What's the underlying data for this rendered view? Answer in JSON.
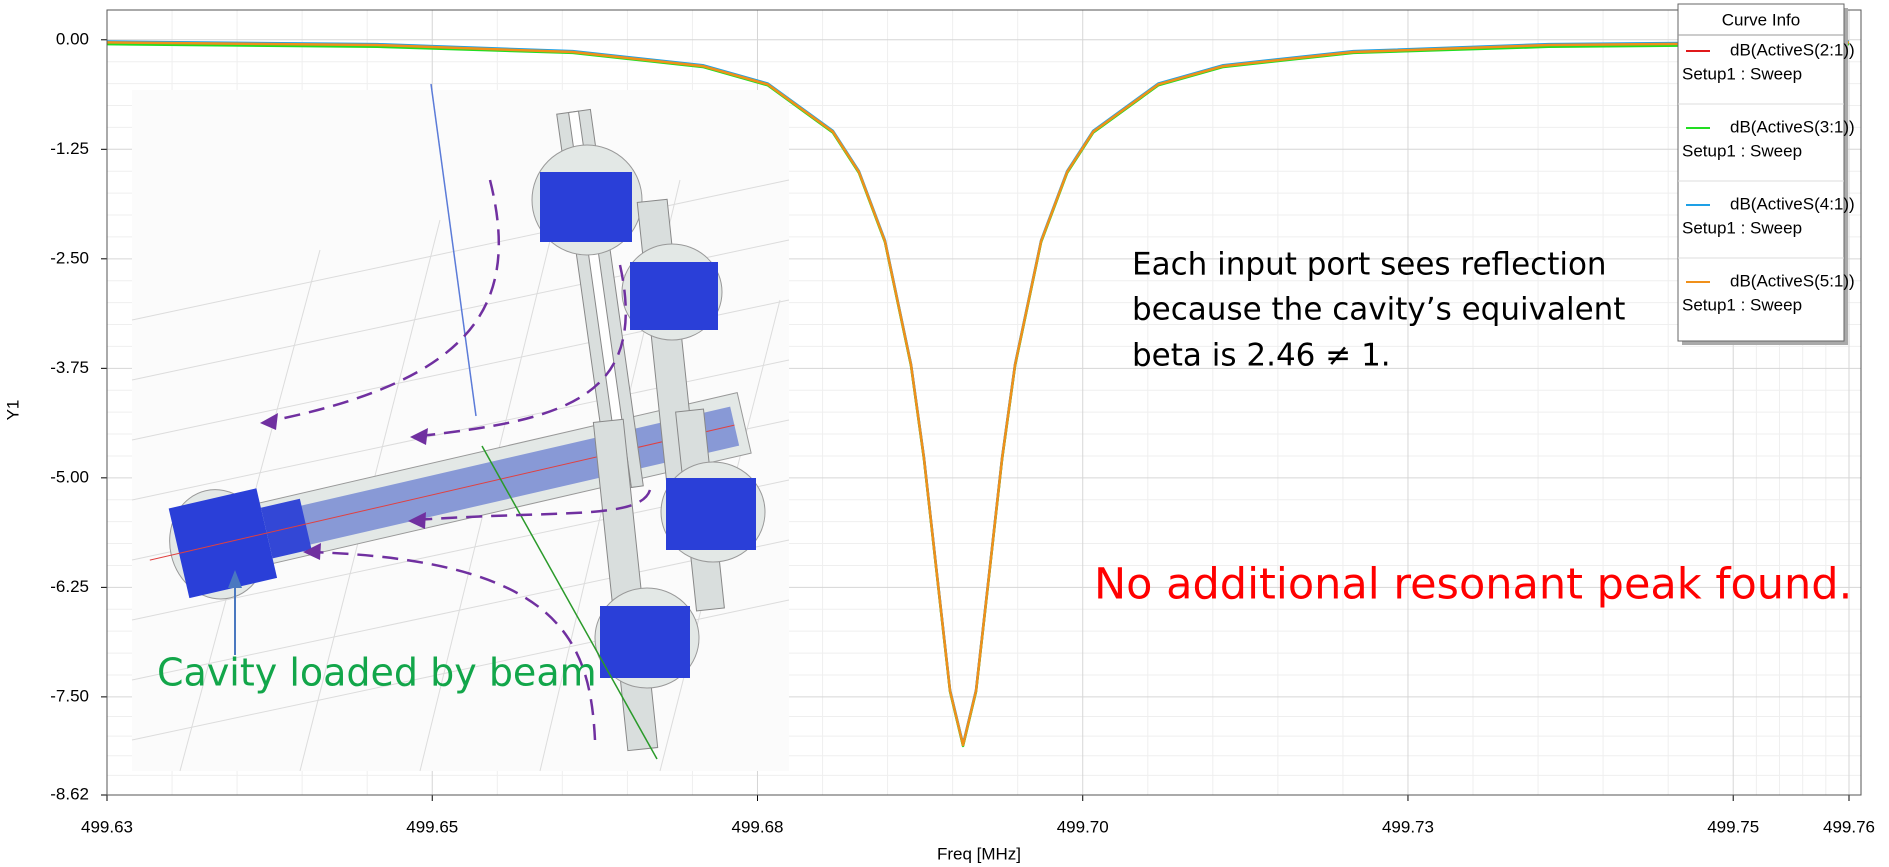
{
  "chart_data": {
    "type": "line",
    "x_label": "Freq [MHz]",
    "y_label": "Y1",
    "legend_title": "Curve Info",
    "x": [
      499.63,
      499.6508,
      499.6658,
      499.6758,
      499.6808,
      499.6858,
      499.6878,
      499.6898,
      499.6918,
      499.6928,
      499.6938,
      499.6948,
      499.6958,
      499.6968,
      499.6978,
      499.6988,
      499.6998,
      499.7018,
      499.7038,
      499.7058,
      499.7108,
      499.7158,
      499.7258,
      499.7408,
      499.7639
    ],
    "series": [
      {
        "name": "dB(ActiveS(2:1))",
        "setup": "Setup1 : Sweep",
        "color": "#e0191b",
        "values": [
          -0.03,
          -0.06,
          -0.14,
          -0.3,
          -0.51,
          -1.05,
          -1.51,
          -2.3,
          -3.71,
          -4.78,
          -6.11,
          -7.43,
          -8.05,
          -7.43,
          -6.11,
          -4.78,
          -3.71,
          -2.3,
          -1.51,
          -1.05,
          -0.51,
          -0.3,
          -0.14,
          -0.06,
          -0.03
        ]
      },
      {
        "name": "dB(ActiveS(3:1))",
        "setup": "Setup1 : Sweep",
        "color": "#22dd22",
        "values": [
          -0.05,
          -0.08,
          -0.15,
          -0.31,
          -0.52,
          -1.06,
          -1.52,
          -2.31,
          -3.72,
          -4.79,
          -6.12,
          -7.44,
          -8.06,
          -7.44,
          -6.12,
          -4.79,
          -3.72,
          -2.31,
          -1.52,
          -1.06,
          -0.52,
          -0.31,
          -0.15,
          -0.08,
          -0.05
        ]
      },
      {
        "name": "dB(ActiveS(4:1))",
        "setup": "Setup1 : Sweep",
        "color": "#1ea0e6",
        "values": [
          -0.02,
          -0.05,
          -0.13,
          -0.29,
          -0.5,
          -1.04,
          -1.5,
          -2.29,
          -3.7,
          -4.77,
          -6.1,
          -7.42,
          -8.04,
          -7.42,
          -6.1,
          -4.77,
          -3.7,
          -2.29,
          -1.5,
          -1.04,
          -0.5,
          -0.29,
          -0.13,
          -0.05,
          -0.02
        ]
      },
      {
        "name": "dB(ActiveS(5:1))",
        "setup": "Setup1 : Sweep",
        "color": "#f0901a",
        "values": [
          -0.03,
          -0.06,
          -0.14,
          -0.3,
          -0.51,
          -1.05,
          -1.51,
          -2.3,
          -3.71,
          -4.78,
          -6.11,
          -7.43,
          -8.05,
          -7.43,
          -6.11,
          -4.78,
          -3.71,
          -2.3,
          -1.51,
          -1.05,
          -0.51,
          -0.3,
          -0.14,
          -0.06,
          -0.03
        ]
      }
    ],
    "xlim": [
      499.63,
      499.7639
    ],
    "xticks": [
      499.63,
      {
        "value": 499.655,
        "label": "499.65"
      },
      499.68,
      {
        "value": 499.705,
        "label": "499.70"
      },
      499.73,
      {
        "value": 499.755,
        "label": "499.75"
      },
      {
        "value": 499.7639,
        "label": "499.76"
      }
    ],
    "ylim": [
      -8.62,
      0.34
    ],
    "yticks": [
      {
        "value": 0,
        "label": "0.00"
      },
      -1.25,
      {
        "value": -2.5,
        "label": "-2.50"
      },
      -3.75,
      {
        "value": -5,
        "label": "-5.00"
      },
      -6.25,
      {
        "value": -7.5,
        "label": "-7.50"
      },
      -8.62
    ],
    "grid": true,
    "legend_position": "upper right",
    "annotations": [
      {
        "text": "Each input port sees reflection",
        "color": "#000000"
      },
      {
        "text": "because the cavity’s equivalent",
        "color": "#000000"
      },
      {
        "text": "beta is 2.46 ≠ 1.",
        "color": "#000000"
      },
      {
        "text": "No additional resonant peak found.",
        "color": "#ff0000"
      },
      {
        "text": "Cavity loaded by beam",
        "color": "#12a64a"
      }
    ]
  }
}
